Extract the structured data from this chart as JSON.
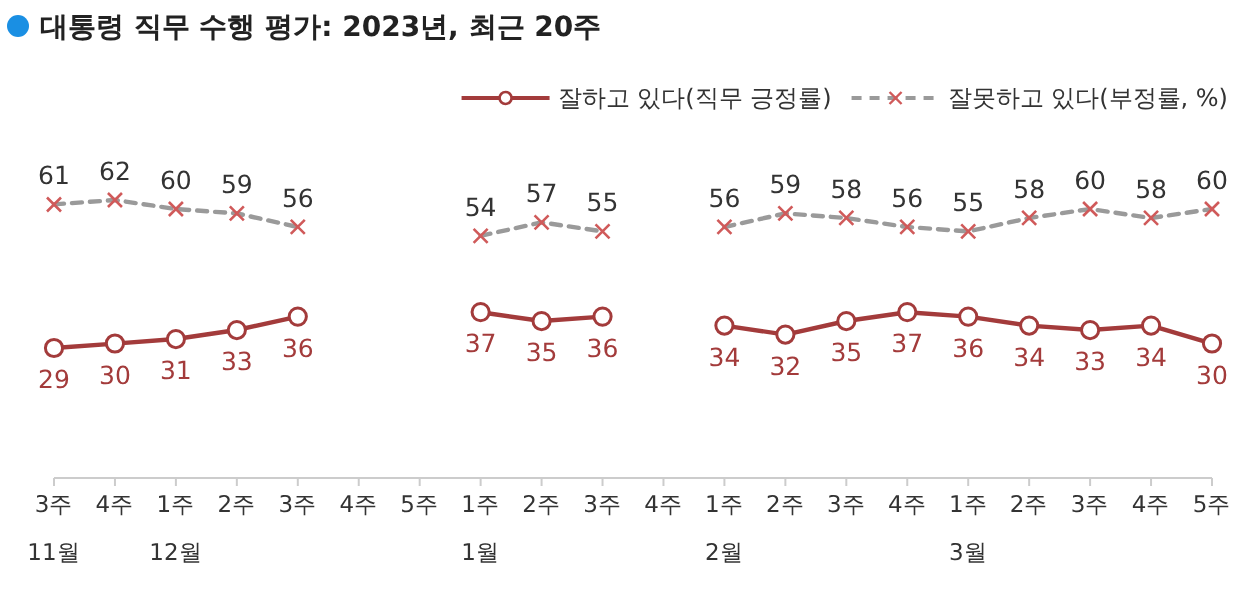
{
  "chart_data": {
    "type": "line",
    "title": "대통령 직무 수행 평가: 2023년, 최근 20주",
    "categories": [
      "3주\n11월",
      "4주",
      "1주\n12월",
      "2주",
      "3주",
      "4주",
      "5주",
      "1주\n1월",
      "2주",
      "3주",
      "4주",
      "1주\n2월",
      "2주",
      "3주",
      "4주",
      "1주\n3월",
      "2주",
      "3주",
      "4주",
      "5주"
    ],
    "series": [
      {
        "name": "잘하고 있다(직무 긍정률)",
        "color": "#a33b3b",
        "marker": "circle",
        "line_style": "solid",
        "values": [
          29,
          30,
          31,
          33,
          36,
          null,
          null,
          37,
          35,
          36,
          null,
          34,
          32,
          35,
          37,
          36,
          34,
          33,
          34,
          30
        ]
      },
      {
        "name": "잘못하고 있다(부정률, %)",
        "color": "#9a9a9a",
        "marker": "cross",
        "line_style": "dashed",
        "values": [
          61,
          62,
          60,
          59,
          56,
          null,
          null,
          54,
          57,
          55,
          null,
          56,
          59,
          58,
          56,
          55,
          58,
          60,
          58,
          60
        ]
      }
    ],
    "data_labels": true,
    "legend": "top right"
  }
}
